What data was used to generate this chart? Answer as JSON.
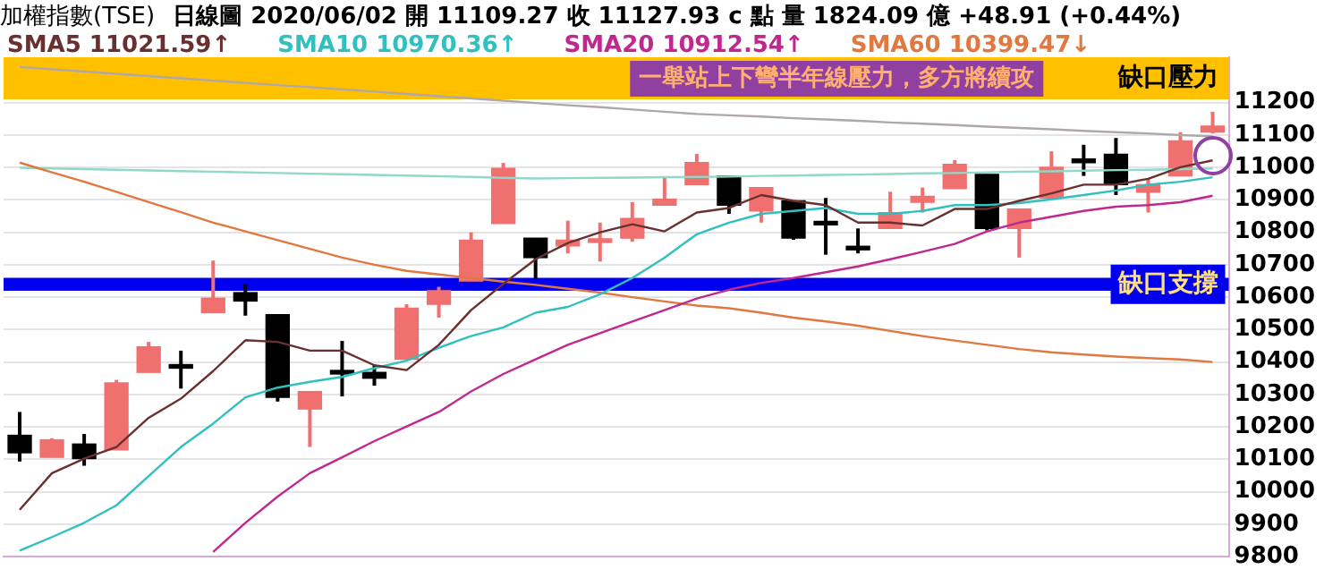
{
  "chart_data": {
    "type": "candlestick",
    "title": "加權指數(TSE)",
    "subtitle": "日線圖  2020/06/02  開 11109.27  收 11127.93 c 點  量 1824.09 億  +48.91 (+0.44%)",
    "categories": [
      null,
      null,
      null,
      null,
      null,
      null,
      null,
      null,
      null,
      null,
      null,
      null,
      null,
      null,
      null,
      null,
      null,
      null,
      null,
      null,
      null,
      null,
      null,
      null,
      null,
      null,
      null,
      null,
      null,
      null,
      null,
      null,
      null,
      null,
      null,
      null,
      null,
      null
    ],
    "ohlc": [
      [
        10174,
        10246,
        10093,
        10120
      ],
      [
        10106,
        10165,
        10106,
        10160
      ],
      [
        10147,
        10178,
        10080,
        10102
      ],
      [
        10129,
        10345,
        10129,
        10336
      ],
      [
        10368,
        10462,
        10368,
        10447
      ],
      [
        10388,
        10435,
        10318,
        10381
      ],
      [
        10552,
        10713,
        10552,
        10597
      ],
      [
        10614,
        10641,
        10543,
        10588
      ],
      [
        10546,
        10546,
        10278,
        10291
      ],
      [
        10255,
        10309,
        10138,
        10309
      ],
      [
        10370,
        10465,
        10294,
        10363
      ],
      [
        10368,
        10390,
        10327,
        10350
      ],
      [
        10408,
        10578,
        10408,
        10566
      ],
      [
        10578,
        10632,
        10537,
        10620
      ],
      [
        10650,
        10800,
        10650,
        10776
      ],
      [
        10827,
        11014,
        10827,
        10997
      ],
      [
        10782,
        10782,
        10656,
        10722
      ],
      [
        10758,
        10836,
        10735,
        10776
      ],
      [
        10769,
        10830,
        10710,
        10776
      ],
      [
        10782,
        10893,
        10771,
        10843
      ],
      [
        10884,
        10970,
        10884,
        10902
      ],
      [
        10947,
        11042,
        10947,
        11015
      ],
      [
        10974,
        10974,
        10857,
        10884
      ],
      [
        10866,
        10938,
        10830,
        10938
      ],
      [
        10897,
        10897,
        10777,
        10782
      ],
      [
        10830,
        10906,
        10731,
        10823
      ],
      [
        10753,
        10812,
        10735,
        10746
      ],
      [
        10812,
        10925,
        10812,
        10861
      ],
      [
        10893,
        10938,
        10861,
        10911
      ],
      [
        10935,
        11023,
        10935,
        11010
      ],
      [
        10979,
        10979,
        10806,
        10812
      ],
      [
        10812,
        10872,
        10722,
        10872
      ],
      [
        10906,
        11050,
        10906,
        11001
      ],
      [
        11023,
        11070,
        10974,
        11015
      ],
      [
        11041,
        11091,
        10915,
        10947
      ],
      [
        10924,
        10965,
        10861,
        10947
      ],
      [
        10974,
        11109,
        10974,
        11082
      ],
      [
        11109.27,
        11172,
        11105,
        11127.93
      ]
    ],
    "colors": [
      "#000000",
      "#f07070",
      "#000000",
      "#f07070",
      "#f07070",
      "#000000",
      "#f07070",
      "#000000",
      "#000000",
      "#f07070",
      "#000000",
      "#000000",
      "#f07070",
      "#f07070",
      "#f07070",
      "#f07070",
      "#000000",
      "#f07070",
      "#f07070",
      "#f07070",
      "#f07070",
      "#f07070",
      "#000000",
      "#f07070",
      "#000000",
      "#000000",
      "#000000",
      "#f07070",
      "#f07070",
      "#f07070",
      "#000000",
      "#f07070",
      "#f07070",
      "#000000",
      "#000000",
      "#f07070",
      "#f07070",
      "#f07070"
    ],
    "series": [
      {
        "name": "SMA5 11021.59↑",
        "type": "line",
        "color": "#6a3030",
        "values": [
          9944,
          10057,
          10102,
          10138,
          10228,
          10287,
          10372,
          10467,
          10462,
          10435,
          10435,
          10390,
          10375,
          10453,
          10560,
          10641,
          10717,
          10767,
          10800,
          10825,
          10803,
          10861,
          10875,
          10915,
          10897,
          10884,
          10830,
          10830,
          10821,
          10872,
          10872,
          10897,
          10920,
          10947,
          10947,
          10965,
          11001,
          11022
        ]
      },
      {
        "name": "SMA10 10970.36↑",
        "type": "line",
        "color": "#30c0c0",
        "values": [
          9818,
          9860,
          9904,
          9958,
          10048,
          10138,
          10210,
          10291,
          10321,
          10339,
          10354,
          10381,
          10404,
          10444,
          10480,
          10507,
          10552,
          10570,
          10609,
          10659,
          10722,
          10794,
          10830,
          10857,
          10866,
          10875,
          10857,
          10857,
          10866,
          10884,
          10884,
          10890,
          10902,
          10915,
          10929,
          10947,
          10956,
          10970
        ]
      },
      {
        "name": "SMA20 10912.54↑",
        "type": "line",
        "color": "#c02890",
        "values": [
          null,
          null,
          null,
          null,
          null,
          null,
          9814,
          9904,
          9985,
          10057,
          10106,
          10156,
          10201,
          10246,
          10309,
          10363,
          10408,
          10453,
          10489,
          10525,
          10560,
          10596,
          10623,
          10644,
          10659,
          10677,
          10695,
          10717,
          10740,
          10764,
          10803,
          10830,
          10848,
          10866,
          10879,
          10884,
          10893,
          10913
        ]
      },
      {
        "name": "SMA60 10399.47↓",
        "type": "line",
        "color": "#e07840",
        "values": [
          11015,
          10985,
          10956,
          10925,
          10893,
          10862,
          10830,
          10803,
          10776,
          10749,
          10722,
          10700,
          10681,
          10670,
          10659,
          10648,
          10638,
          10626,
          10614,
          10600,
          10587,
          10574,
          10566,
          10552,
          10537,
          10525,
          10512,
          10496,
          10480,
          10466,
          10453,
          10440,
          10430,
          10423,
          10417,
          10412,
          10408,
          10400
        ]
      },
      {
        "type": "line",
        "color": "#90d8c8",
        "values": [
          10999,
          10997,
          10995,
          10993,
          10991,
          10989,
          10987,
          10985,
          10983,
          10981,
          10979,
          10977,
          10975,
          10973,
          10971,
          10968,
          10966,
          10967,
          10968,
          10969,
          10970,
          10971,
          10972,
          10974,
          10975,
          10977,
          10978,
          10980,
          10982,
          10983,
          10985,
          10987,
          10988,
          10990,
          10992,
          10993,
          10995,
          10997
        ]
      },
      {
        "type": "line",
        "color": "#b0a8a8",
        "values": [
          11310,
          11303,
          11296,
          11289,
          11282,
          11275,
          11268,
          11261,
          11254,
          11248,
          11241,
          11234,
          11227,
          11220,
          11213,
          11206,
          11199,
          11192,
          11186,
          11179,
          11172,
          11165,
          11161,
          11157,
          11152,
          11148,
          11144,
          11139,
          11135,
          11131,
          11126,
          11122,
          11118,
          11113,
          11109,
          11105,
          11100,
          11096
        ]
      }
    ],
    "ylim": [
      9800,
      11340
    ],
    "yticks": [
      9800,
      9900,
      10000,
      10100,
      10200,
      10300,
      10400,
      10500,
      10600,
      10700,
      10800,
      10900,
      11000,
      11100,
      11200
    ],
    "bands": [
      {
        "axis": "y",
        "from": 11210,
        "to": 11340,
        "label": "缺口壓力",
        "color": "#ffc000"
      },
      {
        "axis": "y",
        "from": 10620,
        "to": 10660,
        "label": "缺口支撐",
        "color": "#0000ee"
      }
    ],
    "annotations": [
      "一舉站上下彎半年線壓力，多方將續攻"
    ],
    "grid": "y",
    "legend": "top left",
    "tick_labels": "y",
    "marker": "none",
    "line_style": "solid"
  }
}
